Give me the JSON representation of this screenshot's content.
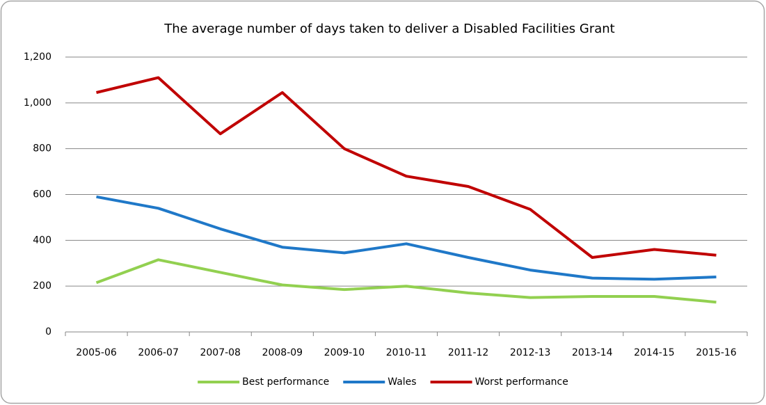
{
  "chart_data": {
    "type": "line",
    "title": "The average number of days taken to deliver a Disabled Facilities Grant",
    "categories": [
      "2005-06",
      "2006-07",
      "2007-08",
      "2008-09",
      "2009-10",
      "2010-11",
      "2011-12",
      "2012-13",
      "2013-14",
      "2014-15",
      "2015-16"
    ],
    "series": [
      {
        "name": "Best performance",
        "color": "#92d050",
        "values": [
          215,
          315,
          260,
          205,
          185,
          200,
          170,
          150,
          155,
          155,
          130
        ]
      },
      {
        "name": "Wales",
        "color": "#1f78c8",
        "values": [
          590,
          540,
          450,
          370,
          345,
          385,
          325,
          270,
          235,
          230,
          240
        ]
      },
      {
        "name": "Worst performance",
        "color": "#c00000",
        "values": [
          1045,
          1110,
          865,
          1045,
          800,
          680,
          635,
          535,
          325,
          360,
          335
        ]
      }
    ],
    "ylim": [
      0,
      1200
    ],
    "yticks": [
      0,
      200,
      400,
      600,
      800,
      {
        "value": 1000,
        "label": "1,000"
      },
      {
        "value": 1200,
        "label": "1,200"
      }
    ],
    "grid": true,
    "legend": "bottom"
  }
}
